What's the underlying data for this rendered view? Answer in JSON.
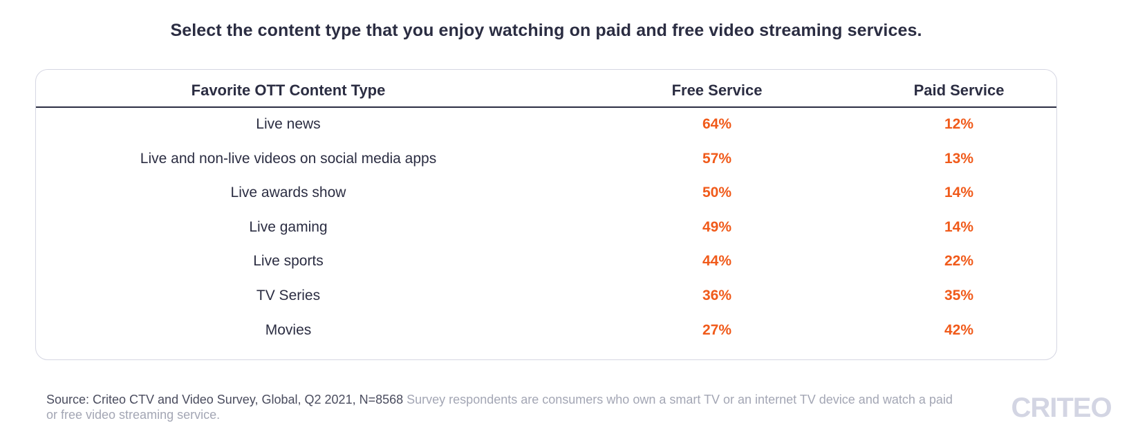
{
  "title": "Select the content type that you enjoy watching on paid and free video streaming services.",
  "colors": {
    "accent": "#f05a1a",
    "text": "#2b2d42",
    "muted": "#a3a6b4",
    "border": "#d5d6e2"
  },
  "chart_data": {
    "type": "table",
    "title": "Select the content type that you enjoy watching on paid and free video streaming services.",
    "columns": [
      "Favorite OTT Content Type",
      "Free Service",
      "Paid Service"
    ],
    "rows": [
      {
        "label": "Live news",
        "free": "64%",
        "paid": "12%"
      },
      {
        "label": "Live and non-live videos on social media apps",
        "free": "57%",
        "paid": "13%"
      },
      {
        "label": "Live awards show",
        "free": "50%",
        "paid": "14%"
      },
      {
        "label": "Live gaming",
        "free": "49%",
        "paid": "14%"
      },
      {
        "label": "Live sports",
        "free": "44%",
        "paid": "22%"
      },
      {
        "label": "TV Series",
        "free": "36%",
        "paid": "35%"
      },
      {
        "label": "Movies",
        "free": "27%",
        "paid": "42%"
      }
    ],
    "categories": [
      "Live news",
      "Live and non-live videos on social media apps",
      "Live awards show",
      "Live gaming",
      "Live sports",
      "TV Series",
      "Movies"
    ],
    "series": [
      {
        "name": "Free Service",
        "values": [
          64,
          57,
          50,
          49,
          44,
          36,
          27
        ]
      },
      {
        "name": "Paid Service",
        "values": [
          12,
          13,
          14,
          14,
          22,
          35,
          42
        ]
      }
    ]
  },
  "footer": {
    "source": "Source: Criteo CTV and Video Survey, Global, Q2 2021, N=8568",
    "note": "Survey respondents are consumers who own a smart TV or an internet TV device and watch a paid or free video streaming service."
  },
  "logo": {
    "text": "CRITEO",
    "color": "#d3d5e3"
  }
}
